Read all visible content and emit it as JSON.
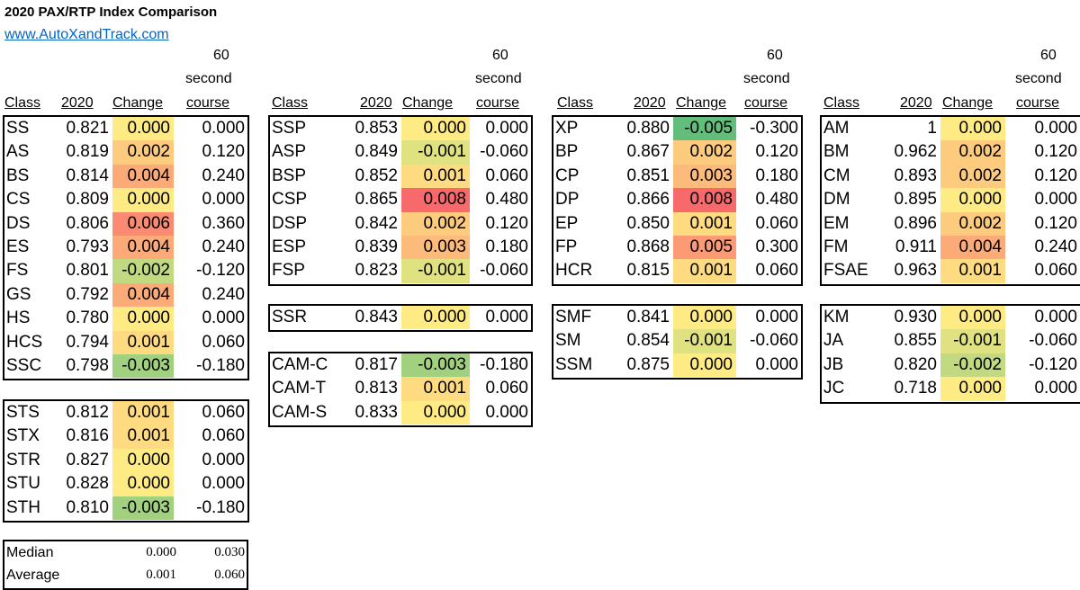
{
  "title": "2020 PAX/RTP Index Comparison",
  "link": "www.AutoXandTrack.com",
  "headers": {
    "class": "Class",
    "year": "2020",
    "change": "Change",
    "line1": "60",
    "line2": "second",
    "line3": "course"
  },
  "colors": {
    "green": "#63be7b",
    "yellow": "#ffeb84",
    "red": "#f8696b"
  },
  "sections": [
    {
      "id": "col1",
      "blocks": [
        {
          "id": "street",
          "rows": [
            {
              "cls": "SS",
              "v2020": "0.821",
              "change": "0.000",
              "course": "0.000",
              "c": 0
            },
            {
              "cls": "AS",
              "v2020": "0.819",
              "change": "0.002",
              "course": "0.120",
              "c": 0.002
            },
            {
              "cls": "BS",
              "v2020": "0.814",
              "change": "0.004",
              "course": "0.240",
              "c": 0.004
            },
            {
              "cls": "CS",
              "v2020": "0.809",
              "change": "0.000",
              "course": "0.000",
              "c": 0
            },
            {
              "cls": "DS",
              "v2020": "0.806",
              "change": "0.006",
              "course": "0.360",
              "c": 0.006
            },
            {
              "cls": "ES",
              "v2020": "0.793",
              "change": "0.004",
              "course": "0.240",
              "c": 0.004
            },
            {
              "cls": "FS",
              "v2020": "0.801",
              "change": "-0.002",
              "course": "-0.120",
              "c": -0.002
            },
            {
              "cls": "GS",
              "v2020": "0.792",
              "change": "0.004",
              "course": "0.240",
              "c": 0.004
            },
            {
              "cls": "HS",
              "v2020": "0.780",
              "change": "0.000",
              "course": "0.000",
              "c": 0
            },
            {
              "cls": "HCS",
              "v2020": "0.794",
              "change": "0.001",
              "course": "0.060",
              "c": 0.001
            },
            {
              "cls": "SSC",
              "v2020": "0.798",
              "change": "-0.003",
              "course": "-0.180",
              "c": -0.003
            }
          ]
        },
        {
          "id": "street-touring",
          "rows": [
            {
              "cls": "STS",
              "v2020": "0.812",
              "change": "0.001",
              "course": "0.060",
              "c": 0.001
            },
            {
              "cls": "STX",
              "v2020": "0.816",
              "change": "0.001",
              "course": "0.060",
              "c": 0.001
            },
            {
              "cls": "STR",
              "v2020": "0.827",
              "change": "0.000",
              "course": "0.000",
              "c": 0
            },
            {
              "cls": "STU",
              "v2020": "0.828",
              "change": "0.000",
              "course": "0.000",
              "c": 0
            },
            {
              "cls": "STH",
              "v2020": "0.810",
              "change": "-0.003",
              "course": "-0.180",
              "c": -0.003
            }
          ]
        }
      ]
    },
    {
      "id": "col2",
      "blocks": [
        {
          "id": "street-prepared",
          "rows": [
            {
              "cls": "SSP",
              "v2020": "0.853",
              "change": "0.000",
              "course": "0.000",
              "c": 0
            },
            {
              "cls": "ASP",
              "v2020": "0.849",
              "change": "-0.001",
              "course": "-0.060",
              "c": -0.001
            },
            {
              "cls": "BSP",
              "v2020": "0.852",
              "change": "0.001",
              "course": "0.060",
              "c": 0.001
            },
            {
              "cls": "CSP",
              "v2020": "0.865",
              "change": "0.008",
              "course": "0.480",
              "c": 0.008
            },
            {
              "cls": "DSP",
              "v2020": "0.842",
              "change": "0.002",
              "course": "0.120",
              "c": 0.002
            },
            {
              "cls": "ESP",
              "v2020": "0.839",
              "change": "0.003",
              "course": "0.180",
              "c": 0.003
            },
            {
              "cls": "FSP",
              "v2020": "0.823",
              "change": "-0.001",
              "course": "-0.060",
              "c": -0.001
            }
          ]
        },
        {
          "id": "ssr",
          "rows": [
            {
              "cls": "SSR",
              "v2020": "0.843",
              "change": "0.000",
              "course": "0.000",
              "c": 0
            }
          ]
        },
        {
          "id": "cam",
          "rows": [
            {
              "cls": "CAM-C",
              "v2020": "0.817",
              "change": "-0.003",
              "course": "-0.180",
              "c": -0.003
            },
            {
              "cls": "CAM-T",
              "v2020": "0.813",
              "change": "0.001",
              "course": "0.060",
              "c": 0.001
            },
            {
              "cls": "CAM-S",
              "v2020": "0.833",
              "change": "0.000",
              "course": "0.000",
              "c": 0
            }
          ]
        }
      ]
    },
    {
      "id": "col3",
      "blocks": [
        {
          "id": "prepared",
          "rows": [
            {
              "cls": "XP",
              "v2020": "0.880",
              "change": "-0.005",
              "course": "-0.300",
              "c": -0.005
            },
            {
              "cls": "BP",
              "v2020": "0.867",
              "change": "0.002",
              "course": "0.120",
              "c": 0.002
            },
            {
              "cls": "CP",
              "v2020": "0.851",
              "change": "0.003",
              "course": "0.180",
              "c": 0.003
            },
            {
              "cls": "DP",
              "v2020": "0.866",
              "change": "0.008",
              "course": "0.480",
              "c": 0.008
            },
            {
              "cls": "EP",
              "v2020": "0.850",
              "change": "0.001",
              "course": "0.060",
              "c": 0.001
            },
            {
              "cls": "FP",
              "v2020": "0.868",
              "change": "0.005",
              "course": "0.300",
              "c": 0.005
            },
            {
              "cls": "HCR",
              "v2020": "0.815",
              "change": "0.001",
              "course": "0.060",
              "c": 0.001
            }
          ]
        },
        {
          "id": "modified",
          "rows": [
            {
              "cls": "SMF",
              "v2020": "0.841",
              "change": "0.000",
              "course": "0.000",
              "c": 0
            },
            {
              "cls": "SM",
              "v2020": "0.854",
              "change": "-0.001",
              "course": "-0.060",
              "c": -0.001
            },
            {
              "cls": "SSM",
              "v2020": "0.875",
              "change": "0.000",
              "course": "0.000",
              "c": 0
            }
          ]
        }
      ]
    },
    {
      "id": "col4",
      "blocks": [
        {
          "id": "mod-race",
          "rows": [
            {
              "cls": "AM",
              "v2020": "1",
              "change": "0.000",
              "course": "0.000",
              "c": 0
            },
            {
              "cls": "BM",
              "v2020": "0.962",
              "change": "0.002",
              "course": "0.120",
              "c": 0.002
            },
            {
              "cls": "CM",
              "v2020": "0.893",
              "change": "0.002",
              "course": "0.120",
              "c": 0.002
            },
            {
              "cls": "DM",
              "v2020": "0.895",
              "change": "0.000",
              "course": "0.000",
              "c": 0
            },
            {
              "cls": "EM",
              "v2020": "0.896",
              "change": "0.002",
              "course": "0.120",
              "c": 0.002
            },
            {
              "cls": "FM",
              "v2020": "0.911",
              "change": "0.004",
              "course": "0.240",
              "c": 0.004
            },
            {
              "cls": "FSAE",
              "v2020": "0.963",
              "change": "0.001",
              "course": "0.060",
              "c": 0.001
            }
          ]
        },
        {
          "id": "karts-junior",
          "rows": [
            {
              "cls": "KM",
              "v2020": "0.930",
              "change": "0.000",
              "course": "0.000",
              "c": 0
            },
            {
              "cls": "JA",
              "v2020": "0.855",
              "change": "-0.001",
              "course": "-0.060",
              "c": -0.001
            },
            {
              "cls": "JB",
              "v2020": "0.820",
              "change": "-0.002",
              "course": "-0.120",
              "c": -0.002
            },
            {
              "cls": "JC",
              "v2020": "0.718",
              "change": "0.000",
              "course": "0.000",
              "c": 0
            }
          ]
        }
      ]
    }
  ],
  "summary": [
    {
      "label": "Median",
      "change": "0.000",
      "course": "0.030"
    },
    {
      "label": "Average",
      "change": "0.001",
      "course": "0.060"
    }
  ]
}
